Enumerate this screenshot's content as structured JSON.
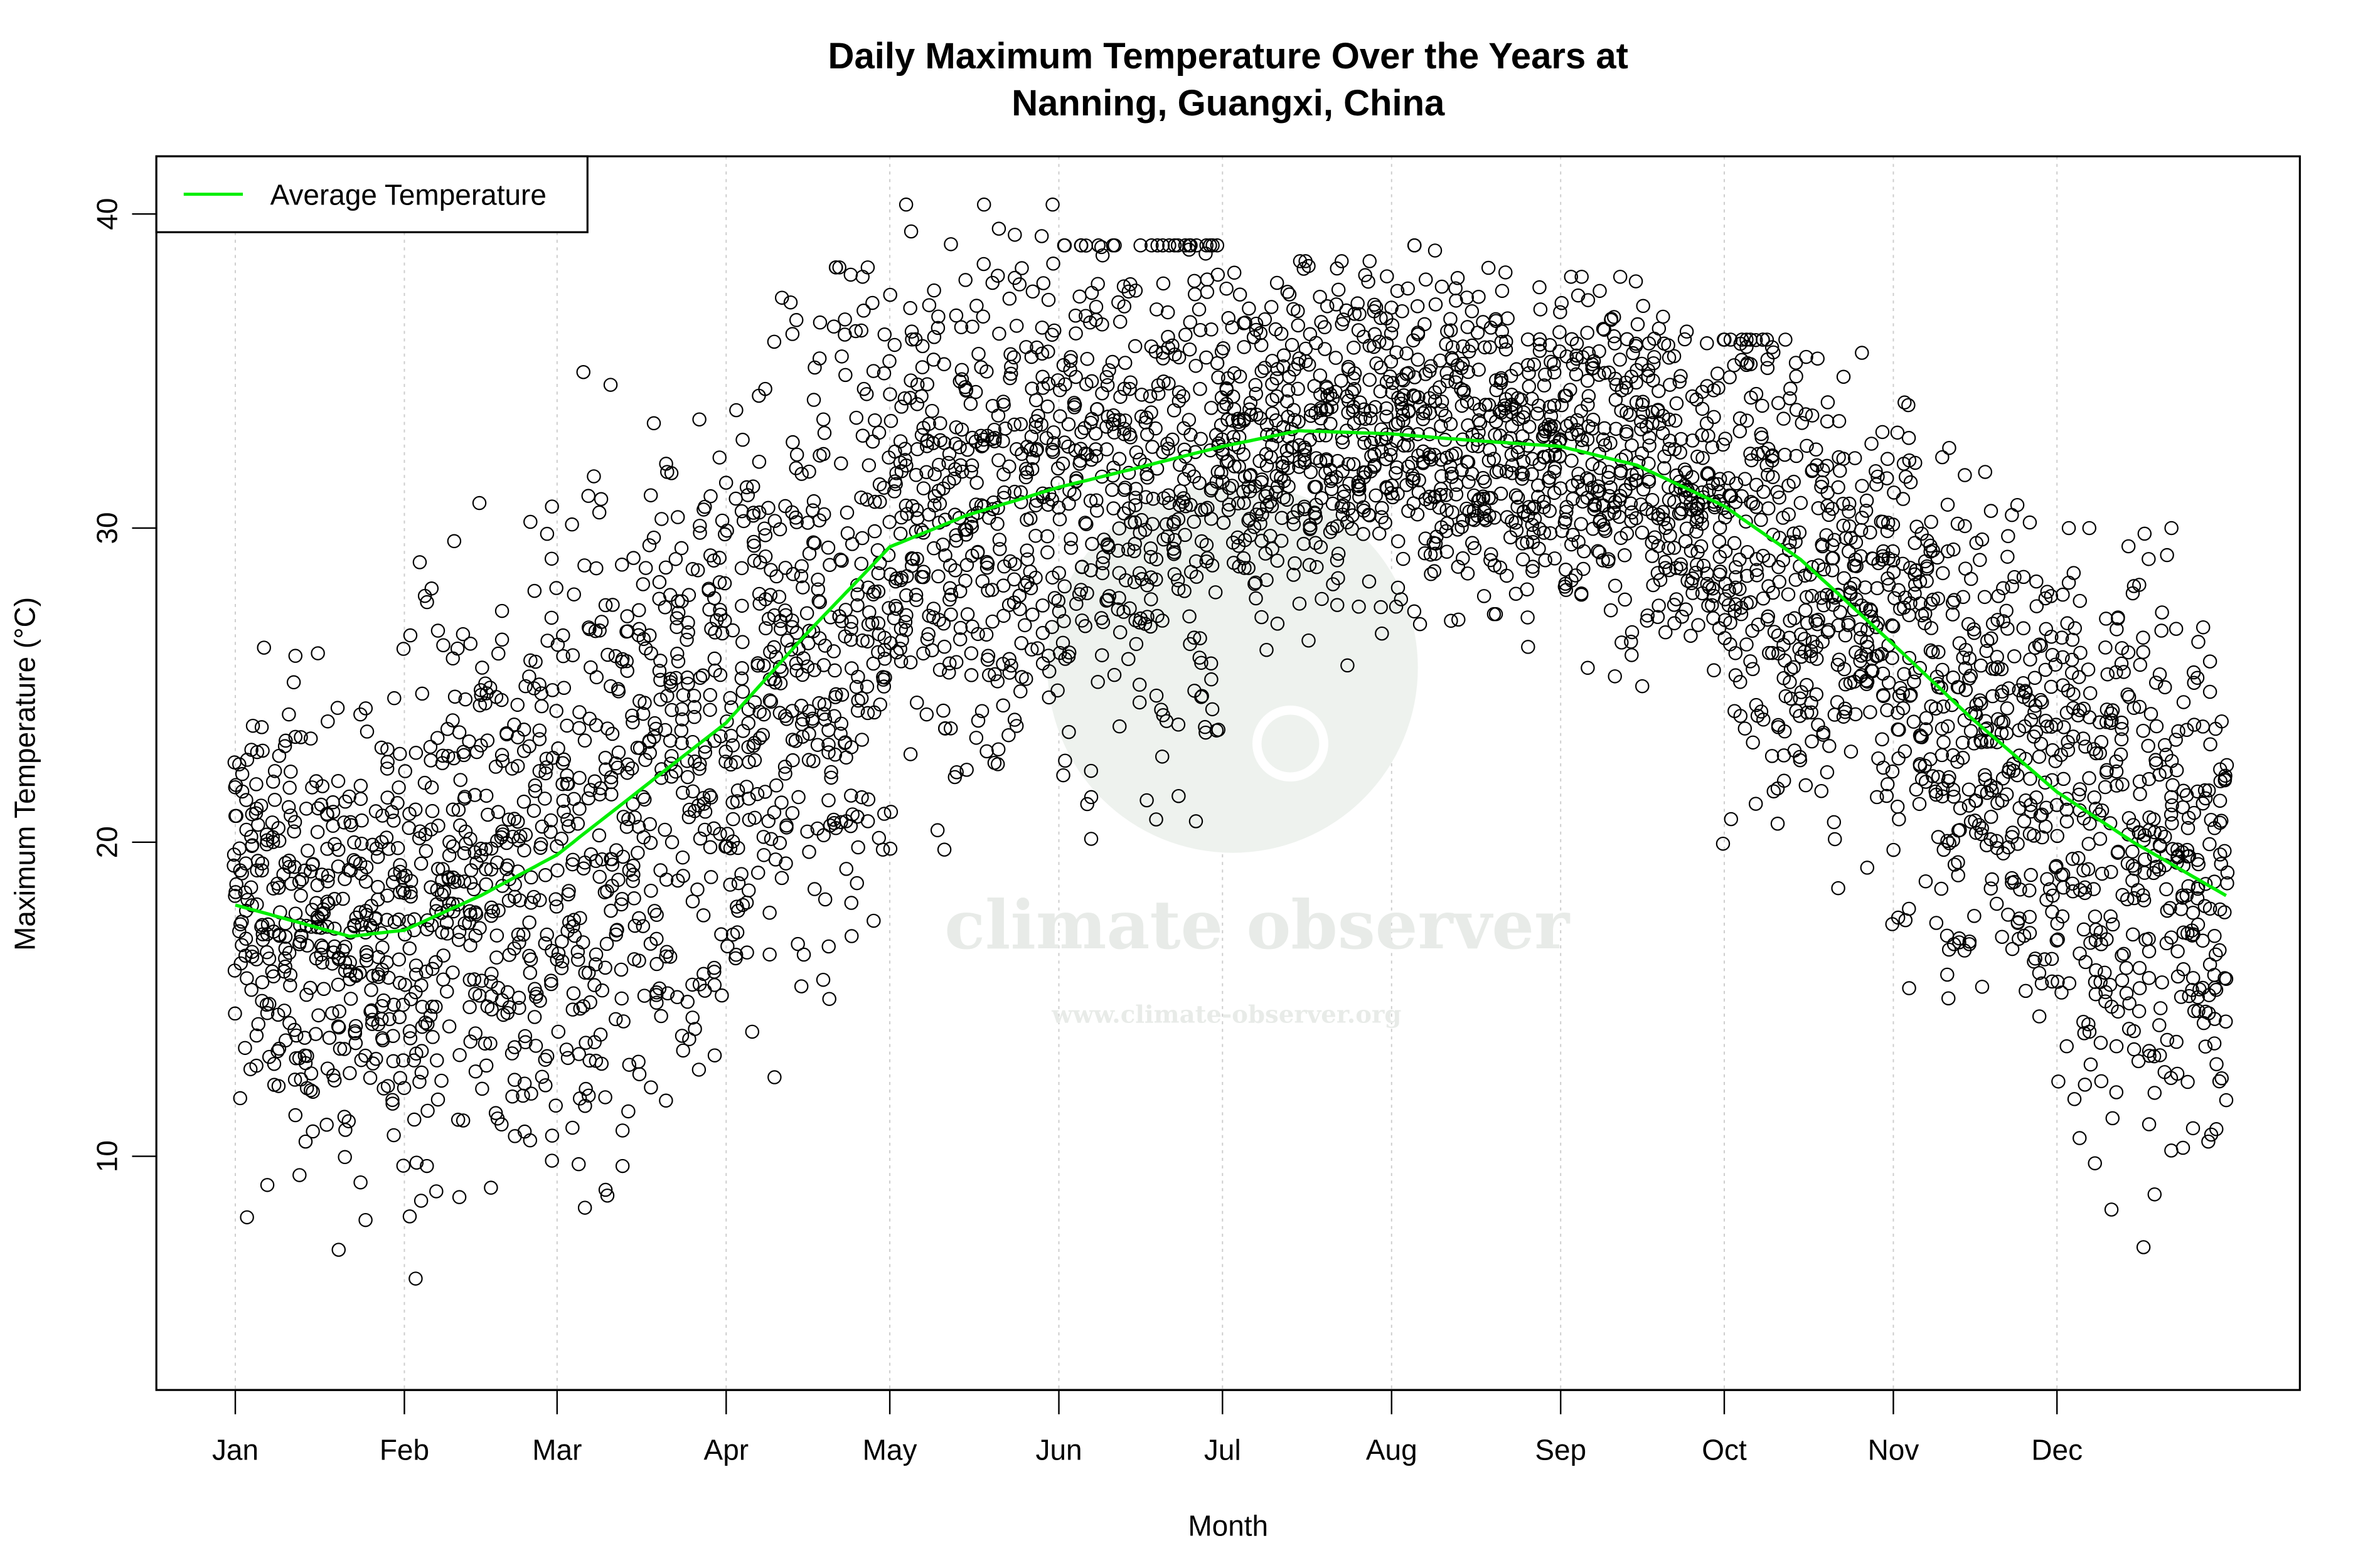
{
  "chart_data": {
    "type": "scatter",
    "title_line1": "Daily Maximum Temperature Over the Years at",
    "title_line2": "Nanning, Guangxi, China",
    "xlabel": "Month",
    "ylabel": "Maximum Temperature (°C)",
    "x_ticks": [
      "Jan",
      "Feb",
      "Mar",
      "Apr",
      "May",
      "Jun",
      "Jul",
      "Aug",
      "Sep",
      "Oct",
      "Nov",
      "Dec"
    ],
    "x_tick_days": [
      1,
      32,
      60,
      91,
      121,
      152,
      182,
      213,
      244,
      274,
      305,
      335
    ],
    "xlim_days": [
      1,
      366
    ],
    "y_ticks": [
      10,
      20,
      30,
      40
    ],
    "ylim": [
      3,
      42
    ],
    "grid": "vertical dotted at month ticks",
    "legend": {
      "placement": "top-left",
      "entries": [
        {
          "label": "Average Temperature",
          "color": "#00ee00"
        }
      ]
    },
    "average_line": {
      "name": "Average Temperature",
      "color": "#00ee00",
      "day": [
        1,
        22,
        32,
        46,
        60,
        74,
        91,
        105,
        121,
        135,
        152,
        166,
        182,
        196,
        213,
        227,
        244,
        258,
        274,
        288,
        305,
        319,
        335,
        349,
        366
      ],
      "value": [
        18.0,
        17.0,
        17.2,
        18.3,
        19.6,
        21.5,
        23.8,
        26.5,
        29.4,
        30.4,
        31.3,
        31.9,
        32.6,
        33.1,
        33.0,
        32.8,
        32.6,
        32.0,
        30.7,
        29.0,
        26.3,
        24.0,
        21.6,
        20.0,
        18.3
      ]
    },
    "daily_points_monthly_range": {
      "months": [
        "Jan",
        "Feb",
        "Mar",
        "Apr",
        "May",
        "Jun",
        "Jul",
        "Aug",
        "Sep",
        "Oct",
        "Nov",
        "Dec"
      ],
      "min": [
        6.0,
        4.0,
        5.5,
        10.5,
        17.0,
        17.0,
        24.0,
        24.5,
        23.0,
        17.5,
        10.5,
        4.7
      ],
      "max": [
        28.0,
        33.0,
        36.2,
        38.3,
        40.3,
        39.0,
        38.5,
        39.0,
        38.0,
        36.0,
        34.0,
        30.0
      ]
    },
    "point_style": "open circle, black"
  },
  "watermark": {
    "name": "climate observer",
    "url": "www.climate-observer.org",
    "color": "#e6ebe6"
  }
}
